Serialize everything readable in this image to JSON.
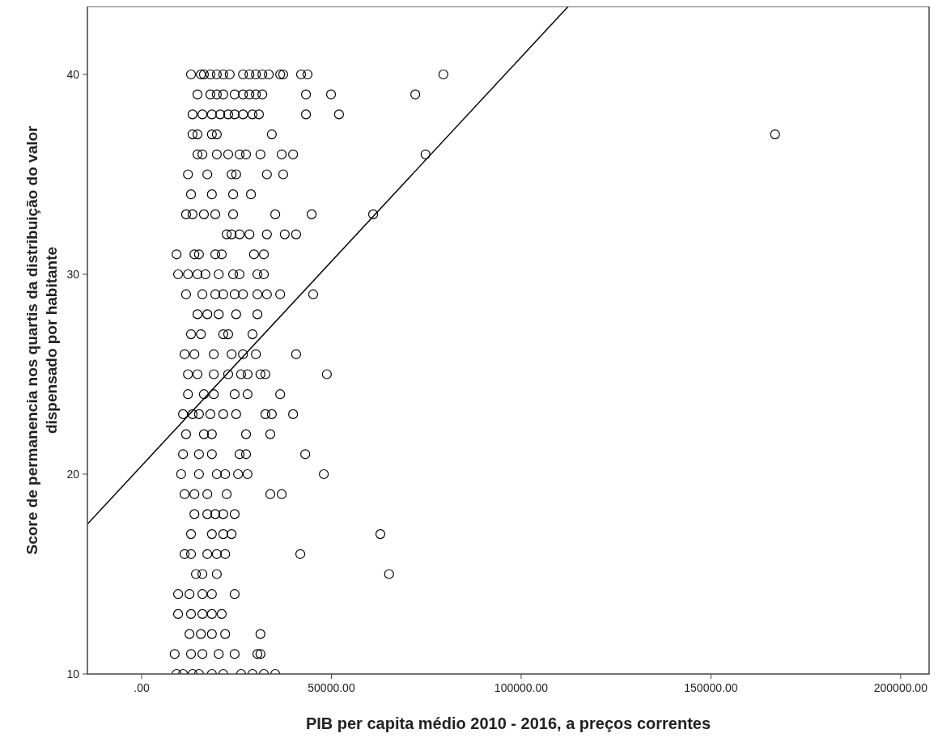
{
  "chart_data": {
    "type": "scatter",
    "xlabel": "PIB per capita médio 2010 - 2016, a preços correntes",
    "ylabel": "Score de permanencia nos quartis da distribuição do valor dispensado por habitante",
    "xlim": [
      -14300,
      207500
    ],
    "ylim": [
      10,
      43.4
    ],
    "xticks": [
      {
        "value": 0,
        "label": ".00"
      },
      {
        "value": 50000,
        "label": "50000.00"
      },
      {
        "value": 100000,
        "label": "100000.00"
      },
      {
        "value": 150000,
        "label": "150000.00"
      },
      {
        "value": 200000,
        "label": "200000.00"
      }
    ],
    "yticks": [
      10,
      20,
      30,
      40
    ],
    "series": [
      {
        "color": "#000000",
        "marker": "circle",
        "x": [
          13000,
          15600,
          16400,
          18100,
          19800,
          21500,
          23200,
          26700,
          28400,
          30100,
          31800,
          33500,
          36500,
          37300,
          42000,
          43700,
          79500,
          14700,
          18100,
          19800,
          21500,
          24500,
          26700,
          28400,
          30100,
          31800,
          43300,
          49900,
          72100,
          13400,
          16000,
          18500,
          20700,
          22800,
          24500,
          26700,
          29200,
          30900,
          43300,
          52000,
          13400,
          14700,
          18500,
          19800,
          34300,
          166900,
          14700,
          16000,
          19800,
          22800,
          25800,
          27500,
          31300,
          36900,
          39900,
          74800,
          12200,
          17300,
          23700,
          24900,
          33000,
          37300,
          13000,
          18500,
          24100,
          28800,
          11700,
          13400,
          16400,
          19400,
          24100,
          35200,
          44800,
          61000,
          22400,
          23700,
          25800,
          28400,
          33000,
          37700,
          40700,
          9200,
          13900,
          15100,
          19400,
          21100,
          29600,
          32200,
          9600,
          12200,
          14700,
          16800,
          20300,
          24100,
          25800,
          30500,
          32200,
          11700,
          16000,
          19400,
          21500,
          24500,
          26700,
          30500,
          33000,
          36500,
          45200,
          14700,
          17300,
          20300,
          24900,
          30500,
          13000,
          15600,
          21500,
          22800,
          29200,
          11300,
          13900,
          19000,
          23700,
          26700,
          30100,
          40700,
          12200,
          14700,
          19000,
          22800,
          26200,
          27900,
          31300,
          32600,
          48800,
          12200,
          16400,
          19000,
          24500,
          27900,
          36500,
          10900,
          13400,
          15100,
          18100,
          21500,
          24900,
          32600,
          34300,
          39900,
          11700,
          16400,
          18500,
          27500,
          33900,
          10900,
          15100,
          18500,
          25800,
          27500,
          43100,
          10400,
          15100,
          19800,
          22000,
          25400,
          27900,
          48000,
          11300,
          13900,
          17300,
          22400,
          33900,
          36900,
          13900,
          17300,
          19400,
          21500,
          24500,
          13000,
          18500,
          21500,
          23700,
          62900,
          11300,
          13000,
          17300,
          19800,
          22000,
          41800,
          14300,
          16000,
          19800,
          65200,
          9600,
          12600,
          16000,
          18500,
          24500,
          9600,
          13000,
          16000,
          18500,
          21100,
          12600,
          15600,
          18500,
          22000,
          31300,
          8700,
          13000,
          16000,
          20300,
          24500,
          30500,
          31300,
          9200,
          10900,
          13400,
          15100,
          18500,
          21500,
          26200,
          29200,
          32200,
          35200
        ],
        "values": [
          40,
          40,
          40,
          40,
          40,
          40,
          40,
          40,
          40,
          40,
          40,
          40,
          40,
          40,
          40,
          40,
          40,
          39,
          39,
          39,
          39,
          39,
          39,
          39,
          39,
          39,
          39,
          39,
          39,
          38,
          38,
          38,
          38,
          38,
          38,
          38,
          38,
          38,
          38,
          38,
          37,
          37,
          37,
          37,
          37,
          37,
          36,
          36,
          36,
          36,
          36,
          36,
          36,
          36,
          36,
          36,
          35,
          35,
          35,
          35,
          35,
          35,
          34,
          34,
          34,
          34,
          33,
          33,
          33,
          33,
          33,
          33,
          33,
          33,
          32,
          32,
          32,
          32,
          32,
          32,
          32,
          31,
          31,
          31,
          31,
          31,
          31,
          31,
          30,
          30,
          30,
          30,
          30,
          30,
          30,
          30,
          30,
          29,
          29,
          29,
          29,
          29,
          29,
          29,
          29,
          29,
          29,
          28,
          28,
          28,
          28,
          28,
          27,
          27,
          27,
          27,
          27,
          26,
          26,
          26,
          26,
          26,
          26,
          26,
          25,
          25,
          25,
          25,
          25,
          25,
          25,
          25,
          25,
          24,
          24,
          24,
          24,
          24,
          24,
          23,
          23,
          23,
          23,
          23,
          23,
          23,
          23,
          23,
          22,
          22,
          22,
          22,
          22,
          21,
          21,
          21,
          21,
          21,
          21,
          20,
          20,
          20,
          20,
          20,
          20,
          20,
          19,
          19,
          19,
          19,
          19,
          19,
          18,
          18,
          18,
          18,
          18,
          17,
          17,
          17,
          17,
          17,
          16,
          16,
          16,
          16,
          16,
          16,
          15,
          15,
          15,
          15,
          14,
          14,
          14,
          14,
          14,
          13,
          13,
          13,
          13,
          13,
          12,
          12,
          12,
          12,
          12,
          11,
          11,
          11,
          11,
          11,
          11,
          11,
          10,
          10,
          10,
          10,
          10,
          10,
          10,
          10,
          10,
          10
        ]
      },
      {
        "type": "line",
        "color": "#000000",
        "x": [
          -14300,
          112400
        ],
        "values": [
          17.5,
          43.4
        ]
      }
    ]
  }
}
